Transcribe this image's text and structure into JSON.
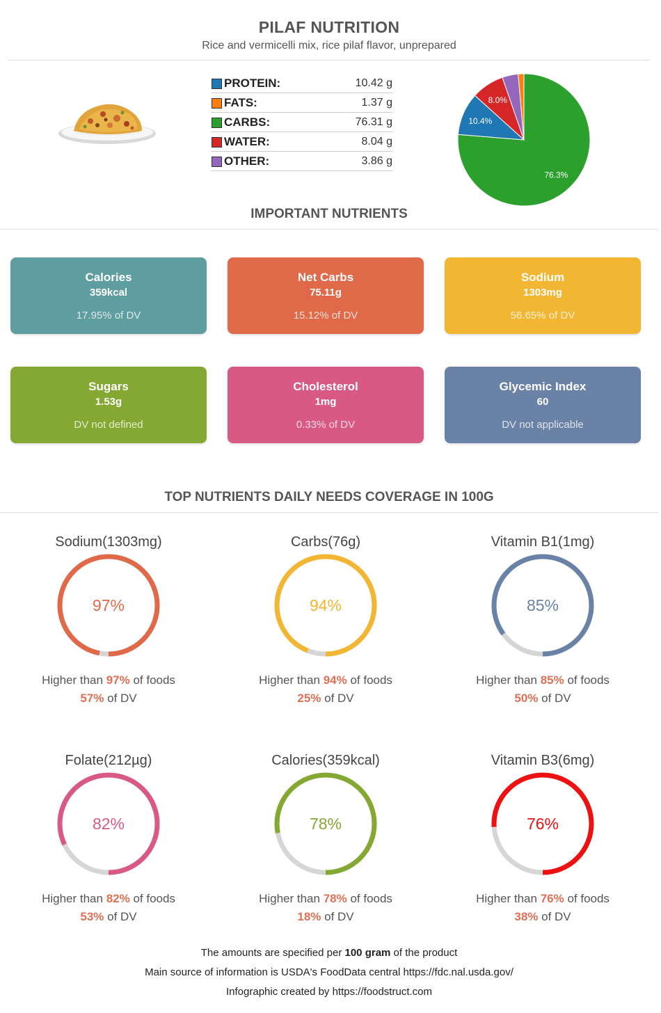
{
  "header": {
    "title": "PILAF NUTRITION",
    "subtitle": "Rice and vermicelli mix, rice pilaf flavor, unprepared"
  },
  "macros": [
    {
      "label": "PROTEIN:",
      "value": "10.42 g",
      "color": "#1f77b4"
    },
    {
      "label": "FATS:",
      "value": "1.37 g",
      "color": "#ff7f0e"
    },
    {
      "label": "CARBS:",
      "value": "76.31 g",
      "color": "#2ca02c"
    },
    {
      "label": "WATER:",
      "value": "8.04 g",
      "color": "#d62728"
    },
    {
      "label": "OTHER:",
      "value": "3.86 g",
      "color": "#9467bd"
    }
  ],
  "chart_data": {
    "type": "pie",
    "slices": [
      {
        "name": "Carbs",
        "value": 76.3,
        "label": "76.3%",
        "color": "#2ca02c"
      },
      {
        "name": "Protein",
        "value": 10.4,
        "label": "10.4%",
        "color": "#1f77b4"
      },
      {
        "name": "Water",
        "value": 8.0,
        "label": "8.0%",
        "color": "#d62728"
      },
      {
        "name": "Other",
        "value": 3.9,
        "label": "",
        "color": "#9467bd"
      },
      {
        "name": "Fats",
        "value": 1.4,
        "label": "",
        "color": "#ff7f0e"
      }
    ]
  },
  "important": {
    "title": "IMPORTANT NUTRIENTS",
    "cards": [
      {
        "name": "Calories",
        "value": "359kcal",
        "dv": "17.95% of DV",
        "color": "#5f9ea0"
      },
      {
        "name": "Net Carbs",
        "value": "75.11g",
        "dv": "15.12% of DV",
        "color": "#e0694a"
      },
      {
        "name": "Sodium",
        "value": "1303mg",
        "dv": "56.65% of DV",
        "color": "#f2b632"
      },
      {
        "name": "Sugars",
        "value": "1.53g",
        "dv": "DV not defined",
        "color": "#84a832"
      },
      {
        "name": "Cholesterol",
        "value": "1mg",
        "dv": "0.33% of DV",
        "color": "#d95985"
      },
      {
        "name": "Glycemic Index",
        "value": "60",
        "dv": "DV not applicable",
        "color": "#6a82a6"
      }
    ]
  },
  "coverage": {
    "title": "TOP NUTRIENTS DAILY NEEDS COVERAGE IN 100G",
    "higher_prefix": "Higher than ",
    "higher_suffix": " of foods",
    "dv_suffix": " of DV",
    "items": [
      {
        "name": "Sodium(1303mg)",
        "percent": 97,
        "percent_label": "97%",
        "dv": "57%",
        "color": "#e0694a"
      },
      {
        "name": "Carbs(76g)",
        "percent": 94,
        "percent_label": "94%",
        "dv": "25%",
        "color": "#f2b632"
      },
      {
        "name": "Vitamin B1(1mg)",
        "percent": 85,
        "percent_label": "85%",
        "dv": "50%",
        "color": "#6a82a6"
      },
      {
        "name": "Folate(212µg)",
        "percent": 82,
        "percent_label": "82%",
        "dv": "53%",
        "color": "#d95985"
      },
      {
        "name": "Calories(359kcal)",
        "percent": 78,
        "percent_label": "78%",
        "dv": "18%",
        "color": "#84a832"
      },
      {
        "name": "Vitamin B3(6mg)",
        "percent": 76,
        "percent_label": "76%",
        "dv": "38%",
        "color": "#ee1111"
      }
    ]
  },
  "footer": {
    "line1_prefix": "The amounts are specified per ",
    "line1_bold": "100 gram",
    "line1_suffix": " of the product",
    "line2": "Main source of information is USDA's FoodData central https://fdc.nal.usda.gov/",
    "line3": "Infographic created by https://foodstruct.com"
  }
}
